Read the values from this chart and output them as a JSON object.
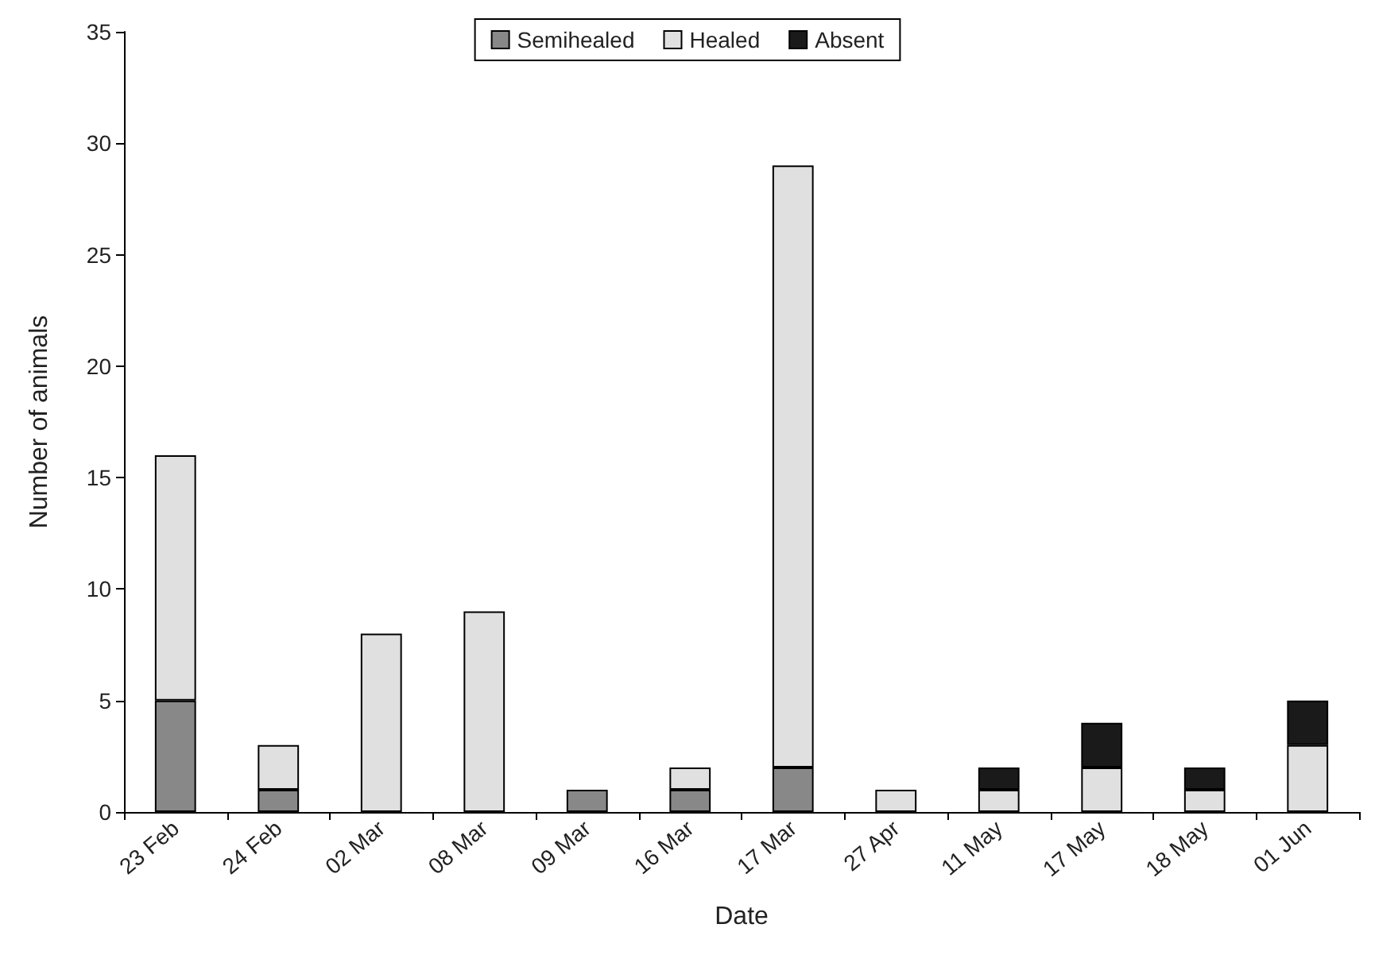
{
  "chart_data": {
    "type": "bar",
    "stacked": true,
    "xlabel": "Date",
    "ylabel": "Number of animals",
    "categories": [
      "23 Feb",
      "24 Feb",
      "02 Mar",
      "08 Mar",
      "09 Mar",
      "16 Mar",
      "17 Mar",
      "27 Apr",
      "11 May",
      "17 May",
      "18 May",
      "01 Jun"
    ],
    "series": [
      {
        "name": "Semihealed",
        "color": "#888888",
        "values": [
          5,
          1,
          0,
          0,
          1,
          1,
          2,
          0,
          0,
          0,
          0,
          0
        ]
      },
      {
        "name": "Healed",
        "color": "#e0e0e0",
        "values": [
          11,
          2,
          8,
          9,
          0,
          1,
          27,
          1,
          1,
          2,
          1,
          3
        ]
      },
      {
        "name": "Absent",
        "color": "#1a1a1a",
        "values": [
          0,
          0,
          0,
          0,
          0,
          0,
          0,
          0,
          1,
          2,
          1,
          2
        ]
      }
    ],
    "ylim": [
      0,
      35
    ],
    "yticks": [
      0,
      5,
      10,
      15,
      20,
      25,
      30,
      35
    ],
    "grid": false,
    "legend": "top"
  }
}
